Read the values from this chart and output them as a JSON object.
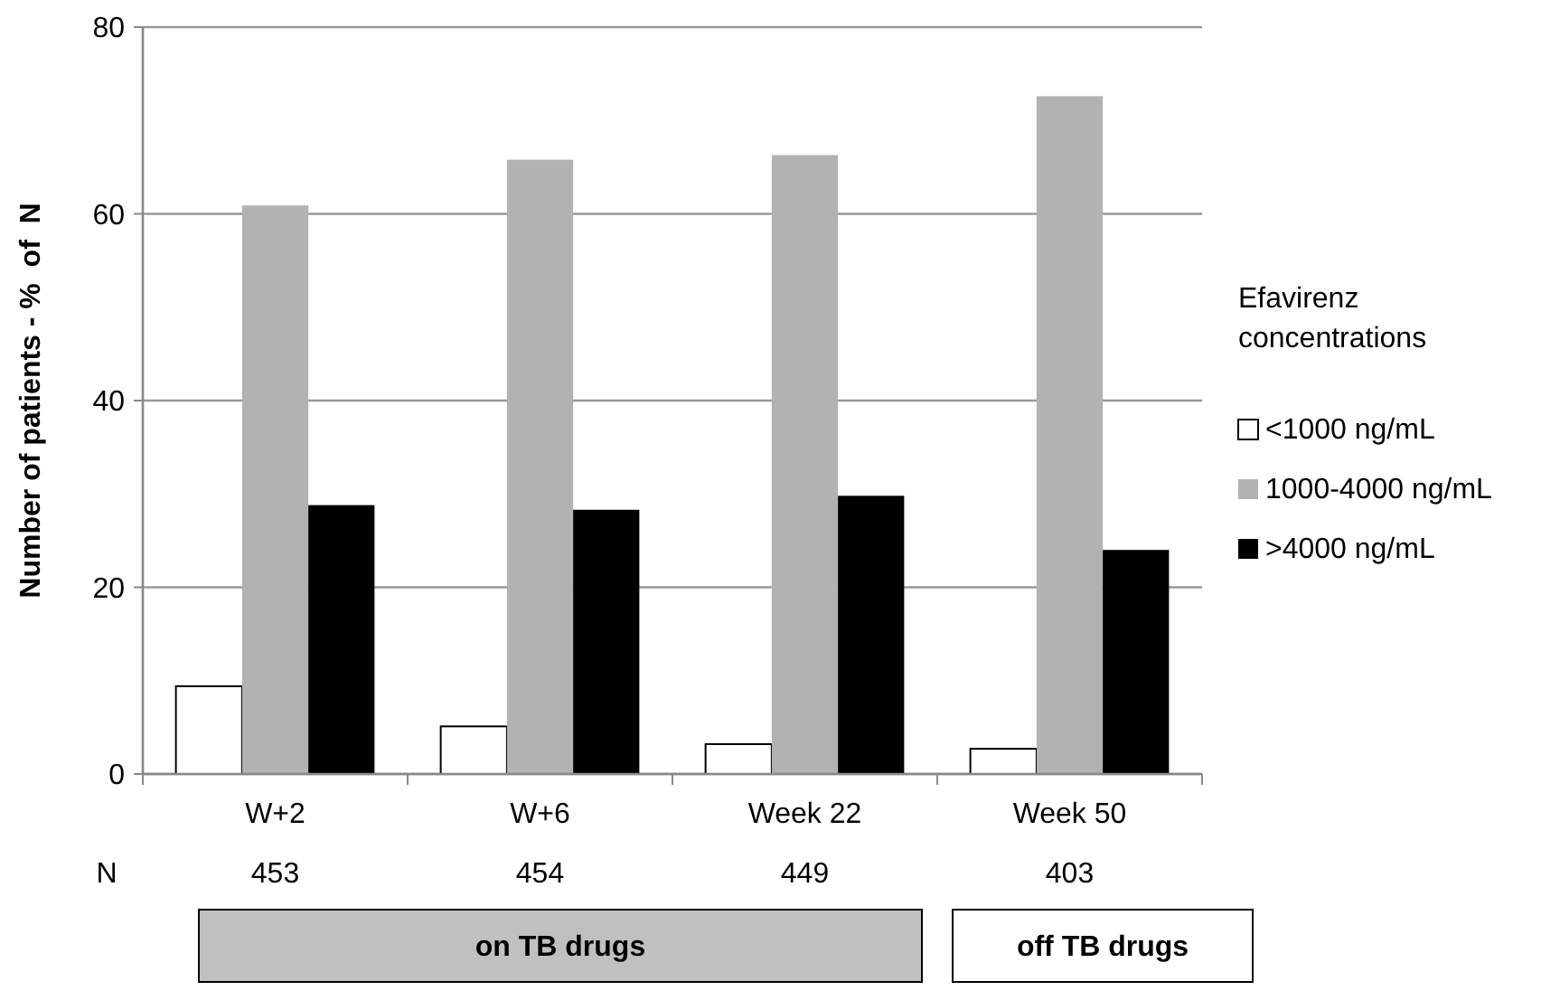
{
  "chart_data": {
    "type": "bar",
    "ylabel": "Number of patients - %  of  N",
    "legend_title": "Efavirenz concentrations",
    "categories": [
      "W+2",
      "W+6",
      "Week 22",
      "Week 50"
    ],
    "series": [
      {
        "name": "<1000 ng/mL",
        "color": "#ffffff",
        "values": [
          9.4,
          5.1,
          3.2,
          2.7
        ]
      },
      {
        "name": "1000-4000 ng/mL",
        "color": "#b2b2b2",
        "values": [
          60.9,
          65.8,
          66.3,
          72.6
        ]
      },
      {
        "name": ">4000 ng/mL",
        "color": "#000000",
        "values": [
          28.8,
          28.3,
          29.8,
          24.0
        ]
      }
    ],
    "ylim": [
      0,
      80
    ],
    "yticks": [
      0,
      20,
      40,
      60,
      80
    ],
    "grid": "y",
    "legend": "right",
    "annotations": [
      "N",
      "453",
      "454",
      "449",
      "403",
      "on TB drugs",
      "off TB drugs"
    ]
  }
}
